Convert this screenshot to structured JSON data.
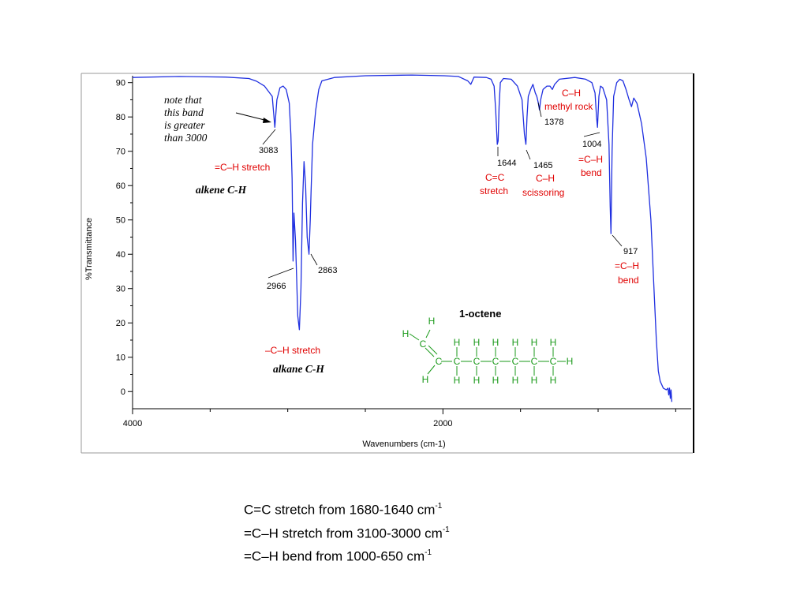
{
  "chart_data": {
    "type": "line",
    "xlabel": "Wavenumbers (cm-1)",
    "ylabel": "%Transmittance",
    "xlim": [
      4000,
      400
    ],
    "ylim": [
      -5,
      92
    ],
    "x_ticks": [
      4000,
      2000
    ],
    "y_ticks": [
      0,
      10,
      20,
      30,
      40,
      50,
      60,
      70,
      80,
      90
    ],
    "grid": false,
    "series": [
      {
        "color": "#1f2fe0",
        "points": [
          [
            4000,
            91.5
          ],
          [
            3700,
            91.8
          ],
          [
            3400,
            91.6
          ],
          [
            3250,
            91.2
          ],
          [
            3200,
            90.4
          ],
          [
            3150,
            89
          ],
          [
            3100,
            86
          ],
          [
            3083,
            77
          ],
          [
            3070,
            85
          ],
          [
            3050,
            88.5
          ],
          [
            3030,
            89
          ],
          [
            3010,
            88
          ],
          [
            2990,
            84
          ],
          [
            2980,
            75
          ],
          [
            2972,
            62
          ],
          [
            2966,
            38
          ],
          [
            2960,
            52
          ],
          [
            2950,
            44
          ],
          [
            2935,
            22
          ],
          [
            2925,
            18
          ],
          [
            2915,
            30
          ],
          [
            2905,
            55
          ],
          [
            2895,
            67
          ],
          [
            2885,
            60
          ],
          [
            2875,
            45
          ],
          [
            2863,
            40
          ],
          [
            2855,
            50
          ],
          [
            2850,
            58
          ],
          [
            2840,
            72
          ],
          [
            2820,
            82
          ],
          [
            2800,
            88
          ],
          [
            2780,
            90.5
          ],
          [
            2700,
            91.5
          ],
          [
            2500,
            92
          ],
          [
            2200,
            92.2
          ],
          [
            1990,
            92
          ],
          [
            1900,
            91.8
          ],
          [
            1840,
            90.5
          ],
          [
            1820,
            89.5
          ],
          [
            1800,
            91.6
          ],
          [
            1720,
            91.5
          ],
          [
            1690,
            91
          ],
          [
            1670,
            89
          ],
          [
            1660,
            82
          ],
          [
            1650,
            72
          ],
          [
            1644,
            73
          ],
          [
            1638,
            83
          ],
          [
            1630,
            90
          ],
          [
            1610,
            91.2
          ],
          [
            1560,
            91
          ],
          [
            1520,
            89
          ],
          [
            1490,
            85
          ],
          [
            1475,
            75
          ],
          [
            1465,
            72
          ],
          [
            1458,
            80
          ],
          [
            1450,
            86
          ],
          [
            1435,
            88
          ],
          [
            1420,
            89.5
          ],
          [
            1405,
            87
          ],
          [
            1395,
            86
          ],
          [
            1385,
            84
          ],
          [
            1378,
            82
          ],
          [
            1370,
            85
          ],
          [
            1355,
            88
          ],
          [
            1330,
            89
          ],
          [
            1310,
            89
          ],
          [
            1295,
            88
          ],
          [
            1280,
            89.5
          ],
          [
            1250,
            91
          ],
          [
            1150,
            91.5
          ],
          [
            1080,
            91
          ],
          [
            1040,
            90
          ],
          [
            1020,
            87
          ],
          [
            1010,
            80
          ],
          [
            1004,
            77
          ],
          [
            995,
            86
          ],
          [
            985,
            89
          ],
          [
            970,
            88.5
          ],
          [
            945,
            85
          ],
          [
            930,
            72
          ],
          [
            922,
            54
          ],
          [
            917,
            46
          ],
          [
            910,
            70
          ],
          [
            900,
            86
          ],
          [
            880,
            90
          ],
          [
            860,
            91
          ],
          [
            840,
            90.5
          ],
          [
            820,
            88
          ],
          [
            800,
            85
          ],
          [
            785,
            83
          ],
          [
            770,
            85.5
          ],
          [
            750,
            84
          ],
          [
            720,
            78
          ],
          [
            690,
            68
          ],
          [
            660,
            50
          ],
          [
            640,
            30
          ],
          [
            625,
            15
          ],
          [
            612,
            6
          ],
          [
            600,
            3
          ],
          [
            580,
            1
          ],
          [
            560,
            0.5
          ],
          [
            550,
            1
          ],
          [
            545,
            -1
          ],
          [
            540,
            1
          ],
          [
            535,
            -2
          ],
          [
            530,
            0.5
          ],
          [
            525,
            -3
          ]
        ]
      }
    ]
  },
  "peak_labels": [
    "3083",
    "2966",
    "2863",
    "1644",
    "1465",
    "1378",
    "1004",
    "917"
  ],
  "annotations": {
    "note_lines": [
      "note that",
      "this band",
      "is greater",
      "than 3000"
    ],
    "alkene_stretch": "=C–H stretch",
    "alkene_ch": "alkene C-H",
    "alkane_stretch": "–C–H stretch",
    "alkane_ch": "alkane C-H",
    "cc_stretch_1": "C=C",
    "cc_stretch_2": "stretch",
    "scissor_1": "C–H",
    "scissor_2": "scissoring",
    "rock_1": "C–H",
    "rock_2": "methyl rock",
    "bend_1004_1": "=C–H",
    "bend_1004_2": "bend",
    "bend_917_1": "=C–H",
    "bend_917_2": "bend"
  },
  "molecule": {
    "name": "1-octene",
    "carbon": "C",
    "hydrogen": "H"
  },
  "caption": {
    "lines": [
      {
        "text": "C=C stretch from 1680-1640 cm",
        "sup": "-1"
      },
      {
        "text": "=C–H stretch from 3100-3000 cm",
        "sup": "-1"
      },
      {
        "text": "=C–H bend from 1000-650 cm",
        "sup": "-1"
      }
    ]
  },
  "colors": {
    "spectrum": "#1f2fe0",
    "annotation": "#e00000",
    "molecule": "#1a9a1a"
  }
}
